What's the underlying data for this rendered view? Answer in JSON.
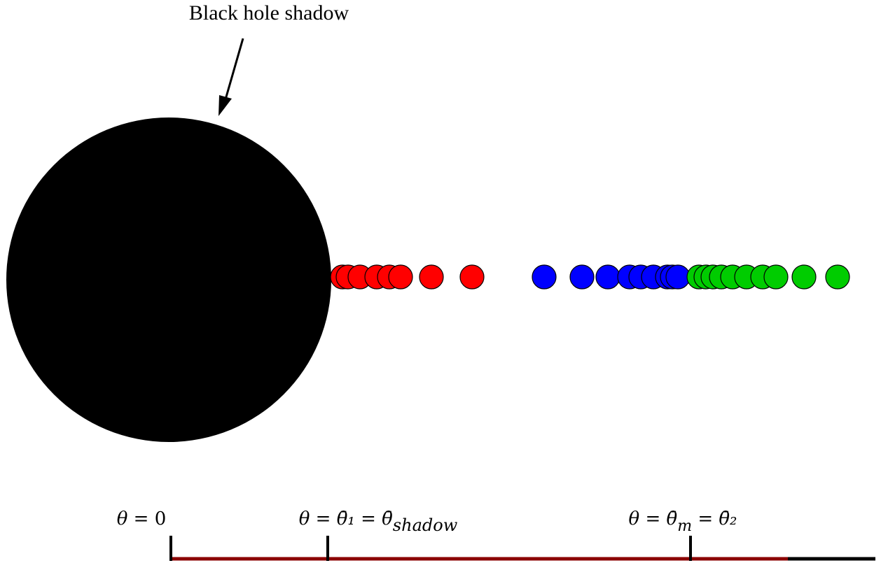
{
  "annotation": {
    "text": "Black hole shadow"
  },
  "colors": {
    "shadow": "#000000",
    "red_dots": "#ff0000",
    "blue_dots": "#0000ff",
    "green_dots": "#00cc00",
    "axis_main": "#8b0000",
    "axis_tail": "#000000"
  },
  "axis_labels": [
    {
      "lhs": "θ",
      "eq": " = ",
      "rhs": "0"
    },
    {
      "lhs": "θ",
      "eq": " = ",
      "rhs": "θ̄₁ = θ̄",
      "sub": "shadow"
    },
    {
      "lhs": "θ",
      "eq": " = ",
      "rhs": "θ̄",
      "sub": "m",
      "tail": " = θ̄₂"
    }
  ]
}
